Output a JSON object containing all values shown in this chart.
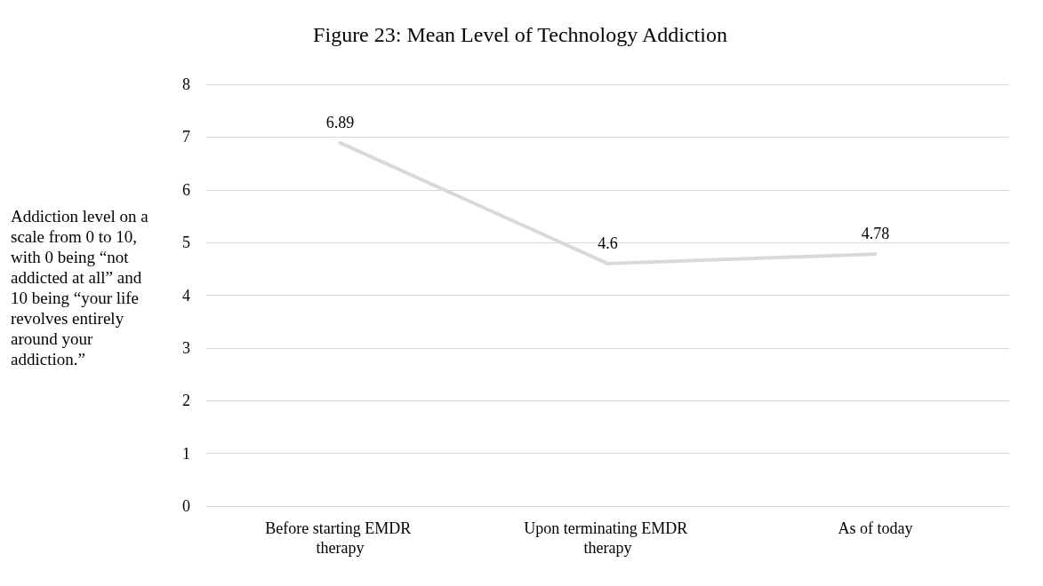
{
  "chart_data": {
    "type": "line",
    "title": "Figure 23: Mean Level of Technology Addiction",
    "ylabel": "Addiction level on a scale from 0 to 10, with 0 being “not addicted at all” and 10 being “your life revolves entirely around your addiction.”",
    "categories": [
      "Before starting EMDR therapy",
      "Upon terminating EMDR therapy",
      "As of today"
    ],
    "series": [
      {
        "color": "#d9d9d9",
        "values": [
          6.89,
          4.6,
          4.78
        ]
      }
    ],
    "ylim": [
      0,
      8
    ],
    "yticks": [
      0,
      1,
      2,
      3,
      4,
      5,
      6,
      7,
      8
    ],
    "grid": "y",
    "data_labels": true,
    "marker": "none",
    "line_style": "solid"
  }
}
